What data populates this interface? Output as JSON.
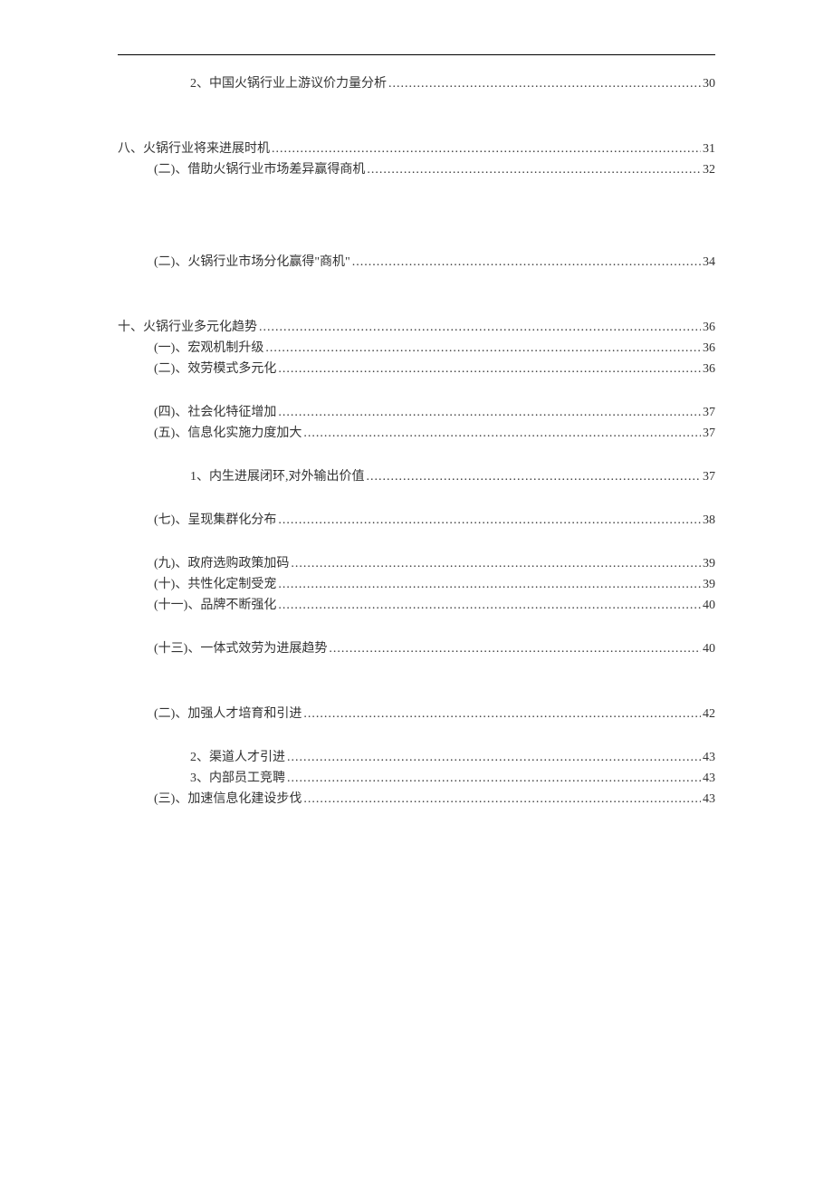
{
  "typography": {
    "font_family": "SimSun",
    "font_size_pt": 10.5,
    "text_color": "#333333",
    "leader_char": ".",
    "rule_color": "#000000"
  },
  "toc": {
    "groups": [
      {
        "gap_after": "md",
        "entries": [
          {
            "indent": 2,
            "label": "2、中国火锅行业上游议价力量分析",
            "page": "30"
          }
        ]
      },
      {
        "gap_after": "lg",
        "entries": [
          {
            "indent": 0,
            "label": "八、火锅行业将来进展时机",
            "page": "31"
          },
          {
            "indent": 1,
            "label": "(二)、借助火锅行业市场差异赢得商机",
            "page": "32"
          }
        ]
      },
      {
        "gap_after": "md",
        "entries": [
          {
            "indent": 1,
            "label": "(二)、火锅行业市场分化赢得\"商机\"",
            "page": "34"
          }
        ]
      },
      {
        "gap_after": "md",
        "entries": [
          {
            "indent": 0,
            "label": "十、火锅行业多元化趋势",
            "page": "36"
          },
          {
            "indent": 1,
            "label": "(一)、宏观机制升级",
            "page": "36"
          },
          {
            "indent": 1,
            "label": "(二)、效劳模式多元化",
            "page": "36"
          },
          {
            "indent": 1,
            "label": "(四)、社会化特征增加",
            "page": "37",
            "gap_before": "sm"
          },
          {
            "indent": 1,
            "label": "(五)、信息化实施力度加大",
            "page": "37"
          },
          {
            "indent": 2,
            "label": "1、内生进展闭环,对外输出价值",
            "page": "37",
            "gap_before": "sm"
          },
          {
            "indent": 1,
            "label": "(七)、呈现集群化分布",
            "page": "38",
            "gap_before": "sm"
          },
          {
            "indent": 1,
            "label": "(九)、政府选购政策加码",
            "page": "39",
            "gap_before": "sm"
          },
          {
            "indent": 1,
            "label": "(十)、共性化定制受宠",
            "page": "39"
          },
          {
            "indent": 1,
            "label": "(十一)、品牌不断强化",
            "page": "40"
          },
          {
            "indent": 1,
            "label": "(十三)、一体式效劳为进展趋势",
            "page": "40",
            "gap_before": "sm"
          }
        ]
      },
      {
        "gap_after": "none",
        "entries": [
          {
            "indent": 1,
            "label": "(二)、加强人才培育和引进",
            "page": "42"
          },
          {
            "indent": 2,
            "label": "2、渠道人才引进",
            "page": "43",
            "gap_before": "sm"
          },
          {
            "indent": 2,
            "label": "3、内部员工竞聘",
            "page": "43"
          },
          {
            "indent": 1,
            "label": "(三)、加速信息化建设步伐",
            "page": "43"
          }
        ]
      }
    ]
  }
}
